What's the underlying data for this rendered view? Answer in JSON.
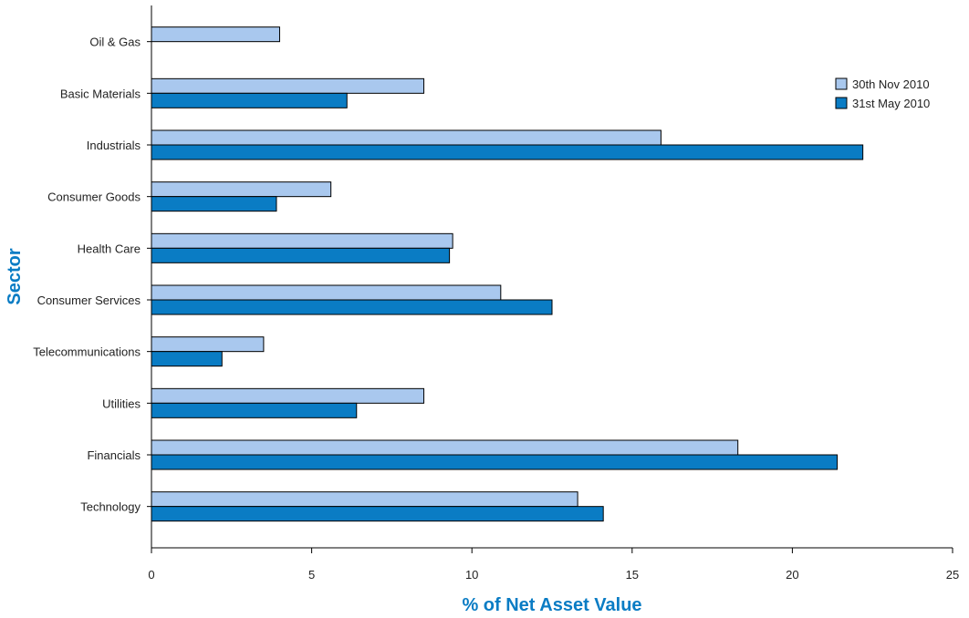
{
  "chart_data": {
    "type": "bar",
    "orientation": "horizontal",
    "categories": [
      "Oil & Gas",
      "Basic Materials",
      "Industrials",
      "Consumer Goods",
      "Health Care",
      "Consumer Services",
      "Telecommunications",
      "Utilities",
      "Financials",
      "Technology"
    ],
    "series": [
      {
        "name": "30th Nov 2010",
        "color": "#a9c8ee",
        "values": [
          4.0,
          8.5,
          15.9,
          5.6,
          9.4,
          10.9,
          3.5,
          8.5,
          18.3,
          13.3
        ]
      },
      {
        "name": "31st May 2010",
        "color": "#0a7cc4",
        "values": [
          null,
          6.1,
          22.2,
          3.9,
          9.3,
          12.5,
          2.2,
          6.4,
          21.4,
          14.1
        ]
      }
    ],
    "xlabel": "% of Net Asset Value",
    "ylabel": "Sector",
    "xlim": [
      0,
      25
    ],
    "xticks": [
      0,
      5,
      10,
      15,
      20,
      25
    ],
    "legend_position": "top-right",
    "grid": false
  }
}
